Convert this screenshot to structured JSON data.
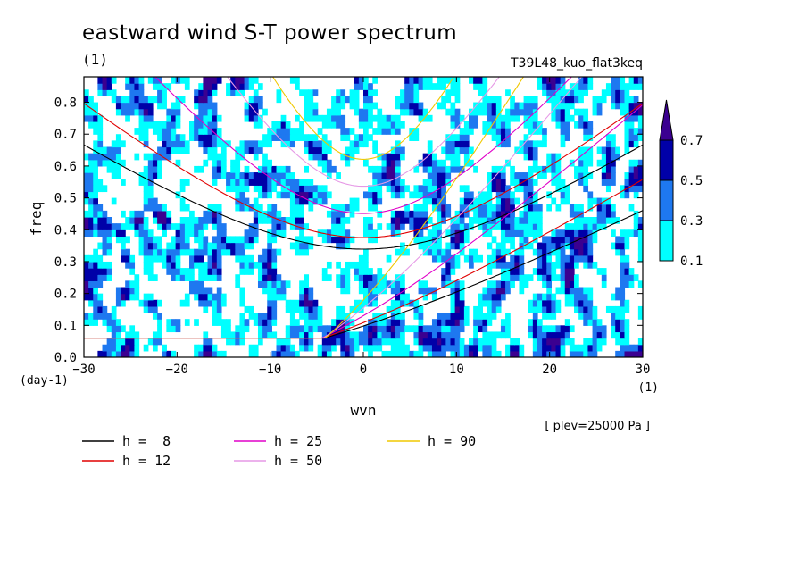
{
  "header": {
    "title": "eastward wind S-T power spectrum",
    "subtitle_unit": "(1)",
    "experiment": "T39L48_kuo_flat3keq",
    "footnote": "[ plev=25000 Pa ]"
  },
  "chart_data": {
    "type": "heatmap",
    "title": "eastward wind S-T power spectrum",
    "xlabel": "wvn",
    "xunit": "(1)",
    "ylabel": "freq",
    "yunit": "(day-1)",
    "xlim": [
      -30,
      30
    ],
    "ylim": [
      0,
      0.88
    ],
    "xticks": [
      -30,
      -20,
      -10,
      0,
      10,
      20,
      30
    ],
    "yticks": [
      0.0,
      0.1,
      0.2,
      0.3,
      0.4,
      0.5,
      0.6,
      0.7,
      0.8
    ],
    "colorbar": {
      "levels": [
        0.1,
        0.3,
        0.5,
        0.7
      ],
      "colors": [
        "#00ffff",
        "#1e78f0",
        "#0000a8",
        "#3b0090"
      ],
      "extend": "max"
    },
    "dispersion_curves": [
      {
        "name": "h =  8",
        "h": 8,
        "color": "#000000"
      },
      {
        "name": "h = 12",
        "h": 12,
        "color": "#e00000"
      },
      {
        "name": "h = 25",
        "h": 25,
        "color": "#e000c8"
      },
      {
        "name": "h = 50",
        "h": 50,
        "color": "#e698e6"
      },
      {
        "name": "h = 90",
        "h": 90,
        "color": "#f0c800"
      }
    ],
    "legend_position": "bottom"
  }
}
